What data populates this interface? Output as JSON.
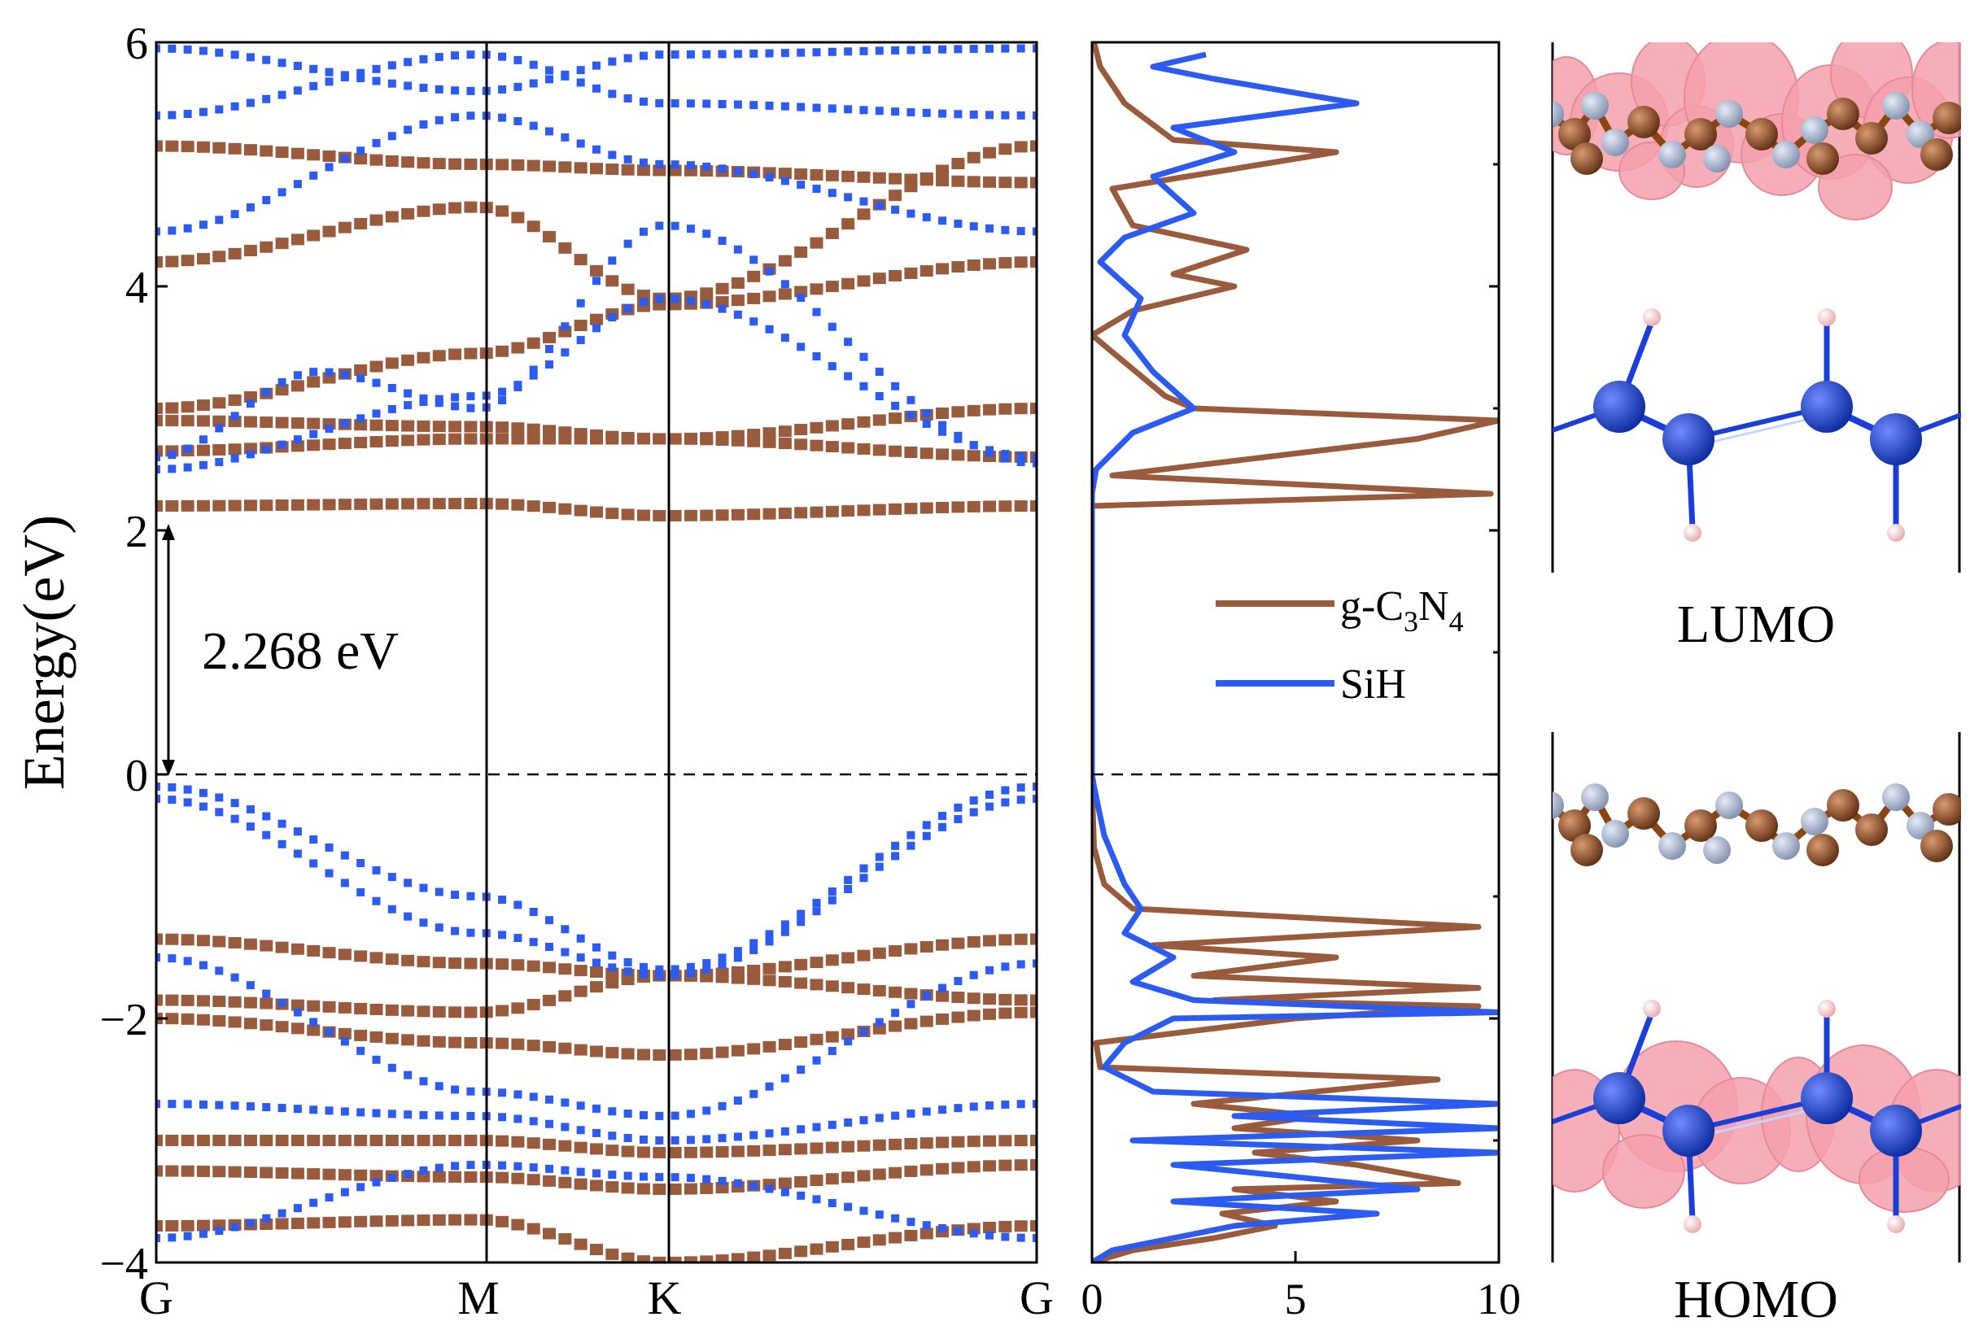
{
  "chart_data": [
    {
      "type": "band_structure",
      "ylabel": "Energy(eV)",
      "ylim": [
        -4,
        6
      ],
      "yticks": [
        -4,
        -2,
        0,
        2,
        4,
        6
      ],
      "ytick_labels": [
        "−4",
        "−2",
        "0",
        "2",
        "4",
        "6"
      ],
      "kpath": [
        {
          "label": "G",
          "pos": 0
        },
        {
          "label": "M",
          "pos": 1
        },
        {
          "label": "K",
          "pos": 1.577
        },
        {
          "label": "G",
          "pos": 2.732
        }
      ],
      "fermi_level": 0,
      "annotation": {
        "text": "2.268 eV",
        "from": 0,
        "to": 2
      },
      "series": [
        {
          "name": "g-C3N4",
          "color": "#9a5a3c",
          "bands": [
            {
              "name": "cb1",
              "nodes": [
                [
                  0,
                  2.2
                ],
                [
                  1,
                  2.22
                ],
                [
                  1.577,
                  2.12
                ],
                [
                  2.732,
                  2.2
                ]
              ]
            },
            {
              "name": "cb2",
              "nodes": [
                [
                  0,
                  2.65
                ],
                [
                  1,
                  2.75
                ],
                [
                  1.577,
                  2.75
                ],
                [
                  2.732,
                  2.6
                ]
              ]
            },
            {
              "name": "cb3",
              "nodes": [
                [
                  0,
                  2.9
                ],
                [
                  1,
                  2.85
                ],
                [
                  1.577,
                  2.75
                ],
                [
                  2.732,
                  3.0
                ]
              ]
            },
            {
              "name": "cb4",
              "nodes": [
                [
                  0,
                  3.0
                ],
                [
                  1,
                  3.45
                ],
                [
                  1.577,
                  3.85
                ],
                [
                  2.732,
                  4.2
                ]
              ]
            },
            {
              "name": "cb5",
              "nodes": [
                [
                  0,
                  4.2
                ],
                [
                  1,
                  4.65
                ],
                [
                  1.577,
                  3.9
                ],
                [
                  2.732,
                  5.15
                ]
              ]
            },
            {
              "name": "cb6",
              "nodes": [
                [
                  0,
                  5.15
                ],
                [
                  1,
                  5.0
                ],
                [
                  1.577,
                  4.95
                ],
                [
                  2.732,
                  4.85
                ]
              ]
            },
            {
              "name": "vb1",
              "nodes": [
                [
                  0,
                  -1.35
                ],
                [
                  1,
                  -1.55
                ],
                [
                  1.577,
                  -1.65
                ],
                [
                  2.732,
                  -1.35
                ]
              ]
            },
            {
              "name": "vb2",
              "nodes": [
                [
                  0,
                  -1.85
                ],
                [
                  1,
                  -1.95
                ],
                [
                  1.577,
                  -1.65
                ],
                [
                  2.732,
                  -1.85
                ]
              ]
            },
            {
              "name": "vb3",
              "nodes": [
                [
                  0,
                  -2.0
                ],
                [
                  1,
                  -2.2
                ],
                [
                  1.577,
                  -2.3
                ],
                [
                  2.732,
                  -1.95
                ]
              ]
            },
            {
              "name": "vb4",
              "nodes": [
                [
                  0,
                  -3.0
                ],
                [
                  1,
                  -3.0
                ],
                [
                  1.577,
                  -3.1
                ],
                [
                  2.732,
                  -3.0
                ]
              ]
            },
            {
              "name": "vb5",
              "nodes": [
                [
                  0,
                  -3.25
                ],
                [
                  1,
                  -3.3
                ],
                [
                  1.577,
                  -3.4
                ],
                [
                  2.732,
                  -3.2
                ]
              ]
            },
            {
              "name": "vb6",
              "nodes": [
                [
                  0,
                  -3.7
                ],
                [
                  1,
                  -3.65
                ],
                [
                  1.577,
                  -4.0
                ],
                [
                  2.732,
                  -3.7
                ]
              ]
            }
          ]
        },
        {
          "name": "SiH",
          "color": "#2b5bf0",
          "bands": [
            {
              "name": "vb1",
              "nodes": [
                [
                  0,
                  -0.1
                ],
                [
                  1,
                  -1.0
                ],
                [
                  1.577,
                  -1.6
                ],
                [
                  2.732,
                  -0.1
                ]
              ]
            },
            {
              "name": "vb2",
              "nodes": [
                [
                  0,
                  -0.2
                ],
                [
                  1,
                  -1.3
                ],
                [
                  1.577,
                  -1.65
                ],
                [
                  2.732,
                  -0.2
                ]
              ]
            },
            {
              "name": "vb3",
              "nodes": [
                [
                  0,
                  -1.5
                ],
                [
                  1,
                  -2.6
                ],
                [
                  1.577,
                  -2.8
                ],
                [
                  2.732,
                  -1.55
                ]
              ]
            },
            {
              "name": "vb4",
              "nodes": [
                [
                  0,
                  -2.7
                ],
                [
                  1,
                  -2.8
                ],
                [
                  1.577,
                  -3.0
                ],
                [
                  2.732,
                  -2.7
                ]
              ]
            },
            {
              "name": "vb5",
              "nodes": [
                [
                  0,
                  -3.8
                ],
                [
                  1,
                  -3.2
                ],
                [
                  1.577,
                  -3.3
                ],
                [
                  2.732,
                  -3.8
                ]
              ]
            },
            {
              "name": "cb1",
              "nodes": [
                [
                  0,
                  2.6
                ],
                [
                  0.5,
                  3.3
                ],
                [
                  1,
                  3.0
                ],
                [
                  1.577,
                  4.5
                ],
                [
                  2.732,
                  2.55
                ]
              ]
            },
            {
              "name": "cb2",
              "nodes": [
                [
                  0,
                  2.5
                ],
                [
                  1,
                  3.1
                ],
                [
                  1.577,
                  3.9
                ],
                [
                  2.732,
                  2.6
                ]
              ]
            },
            {
              "name": "cb3",
              "nodes": [
                [
                  0,
                  4.45
                ],
                [
                  1,
                  5.4
                ],
                [
                  1.577,
                  5.0
                ],
                [
                  2.732,
                  4.45
                ]
              ]
            },
            {
              "name": "cb4",
              "nodes": [
                [
                  0,
                  5.4
                ],
                [
                  1,
                  5.9
                ],
                [
                  1.577,
                  5.5
                ],
                [
                  2.732,
                  5.4
                ]
              ]
            },
            {
              "name": "cb5",
              "nodes": [
                [
                  0,
                  5.95
                ],
                [
                  1,
                  5.6
                ],
                [
                  1.577,
                  5.9
                ],
                [
                  2.732,
                  5.95
                ]
              ]
            }
          ]
        }
      ]
    },
    {
      "type": "line",
      "title": "",
      "xlim": [
        0,
        10
      ],
      "xticks": [
        0,
        5,
        10
      ],
      "ylim": [
        -4,
        6
      ],
      "legend": {
        "position": "middle-right",
        "entries": [
          "g-C3N4",
          "SiH"
        ]
      },
      "series": [
        {
          "name": "g-C3N4",
          "color": "#9a5a3c",
          "points": [
            [
              0,
              -4
            ],
            [
              1.0,
              -3.9
            ],
            [
              3.0,
              -3.8
            ],
            [
              4.5,
              -3.7
            ],
            [
              3.2,
              -3.6
            ],
            [
              6.0,
              -3.5
            ],
            [
              3.5,
              -3.4
            ],
            [
              9.0,
              -3.35
            ],
            [
              6.5,
              -3.2
            ],
            [
              4.0,
              -3.1
            ],
            [
              8.0,
              -3.0
            ],
            [
              3.5,
              -2.9
            ],
            [
              5.5,
              -2.8
            ],
            [
              2.5,
              -2.7
            ],
            [
              8.5,
              -2.5
            ],
            [
              0.2,
              -2.4
            ],
            [
              0.1,
              -2.2
            ],
            [
              5.0,
              -2.0
            ],
            [
              9.5,
              -1.9
            ],
            [
              3.0,
              -1.85
            ],
            [
              9.5,
              -1.75
            ],
            [
              2.5,
              -1.65
            ],
            [
              6.0,
              -1.5
            ],
            [
              1.5,
              -1.4
            ],
            [
              9.5,
              -1.25
            ],
            [
              1.0,
              -1.1
            ],
            [
              0.3,
              -0.9
            ],
            [
              0.05,
              -0.6
            ],
            [
              0,
              -0.1
            ],
            [
              0,
              2.2
            ],
            [
              9.8,
              2.3
            ],
            [
              0.5,
              2.45
            ],
            [
              8.0,
              2.75
            ],
            [
              10,
              2.9
            ],
            [
              2.5,
              3.0
            ],
            [
              1.8,
              3.1
            ],
            [
              0,
              3.6
            ],
            [
              1.0,
              3.8
            ],
            [
              3.5,
              4.0
            ],
            [
              2.0,
              4.1
            ],
            [
              3.8,
              4.3
            ],
            [
              1.0,
              4.5
            ],
            [
              0.5,
              4.8
            ],
            [
              6.0,
              5.1
            ],
            [
              2.0,
              5.2
            ],
            [
              0.8,
              5.5
            ],
            [
              0.2,
              5.8
            ],
            [
              0.05,
              6.0
            ]
          ]
        },
        {
          "name": "SiH",
          "color": "#2b5bf0",
          "points": [
            [
              0,
              -4
            ],
            [
              0.5,
              -3.9
            ],
            [
              3.5,
              -3.7
            ],
            [
              7.0,
              -3.6
            ],
            [
              2.0,
              -3.5
            ],
            [
              8.0,
              -3.4
            ],
            [
              2.0,
              -3.2
            ],
            [
              10,
              -3.1
            ],
            [
              1.0,
              -3.0
            ],
            [
              10,
              -2.9
            ],
            [
              3.5,
              -2.8
            ],
            [
              10,
              -2.7
            ],
            [
              1.5,
              -2.6
            ],
            [
              0.3,
              -2.4
            ],
            [
              0.8,
              -2.2
            ],
            [
              2.0,
              -2.0
            ],
            [
              10,
              -1.95
            ],
            [
              2.5,
              -1.85
            ],
            [
              1.0,
              -1.7
            ],
            [
              2.0,
              -1.5
            ],
            [
              0.8,
              -1.3
            ],
            [
              1.2,
              -1.1
            ],
            [
              0.8,
              -0.9
            ],
            [
              0.3,
              -0.5
            ],
            [
              0.05,
              -0.1
            ],
            [
              0,
              0
            ],
            [
              0,
              2.3
            ],
            [
              0.1,
              2.5
            ],
            [
              1.0,
              2.8
            ],
            [
              2.5,
              3.0
            ],
            [
              1.5,
              3.3
            ],
            [
              0.8,
              3.6
            ],
            [
              1.2,
              3.9
            ],
            [
              0.2,
              4.2
            ],
            [
              0.8,
              4.4
            ],
            [
              2.5,
              4.6
            ],
            [
              1.5,
              4.9
            ],
            [
              3.5,
              5.1
            ],
            [
              2.0,
              5.3
            ],
            [
              6.5,
              5.5
            ],
            [
              3.0,
              5.7
            ],
            [
              1.5,
              5.8
            ],
            [
              2.8,
              5.9
            ]
          ]
        }
      ]
    }
  ],
  "panels": {
    "band": {
      "ylabel": "Energy(eV)",
      "gap_label": "2.268 eV",
      "ticks_y": [
        "−4",
        "−2",
        "0",
        "2",
        "4",
        "6"
      ],
      "ticks_x": [
        "G",
        "M",
        "K",
        "G"
      ]
    },
    "dos": {
      "ticks_x": [
        "0",
        "5",
        "10"
      ],
      "legend": {
        "g_c3n4": {
          "base": "g-C",
          "sub1": "3",
          "mid": "N",
          "sub2": "4"
        },
        "sih": "SiH"
      }
    },
    "orbitals": {
      "lumo_label": "LUMO",
      "homo_label": "HOMO"
    }
  },
  "colors": {
    "gc3n4": "#9a5a3c",
    "sih": "#2b5bf0",
    "atom_c": "#8b4513",
    "atom_n": "#a9b4cc",
    "atom_si": "#1a3fd8",
    "atom_h": "#f4c6c6",
    "orbital": "#f4a0ac"
  }
}
